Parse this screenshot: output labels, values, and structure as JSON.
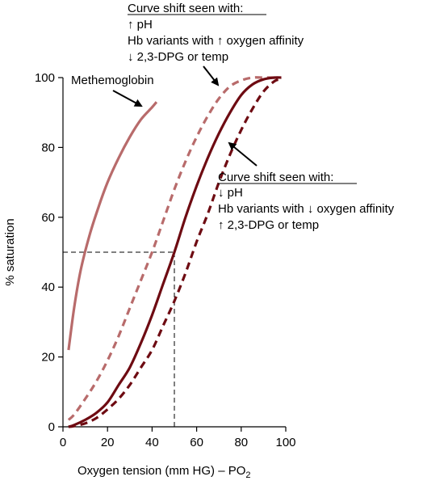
{
  "chart_data": {
    "type": "line",
    "title": "",
    "xlabel": "Oxygen tension (mm HG) – PO",
    "xlabel_subscript": "2",
    "ylabel": "% saturation",
    "xlim": [
      0,
      100
    ],
    "ylim": [
      0,
      100
    ],
    "xticks": [
      "0",
      "20",
      "40",
      "60",
      "80",
      "100"
    ],
    "yticks": [
      "0",
      "20",
      "40",
      "60",
      "80",
      "100"
    ],
    "grid": false,
    "reference_lines": {
      "x": 50,
      "y": 50
    },
    "series": [
      {
        "key": "methemoglobin",
        "color": "#b86b6b",
        "style": "solid",
        "x": [
          2.5,
          5,
          8,
          12,
          16,
          20,
          25,
          30,
          35,
          40,
          42
        ],
        "y": [
          22,
          34,
          45,
          55,
          63,
          70,
          77,
          83,
          88,
          91.5,
          93
        ]
      },
      {
        "key": "left-shift",
        "color": "#b86b6b",
        "style": "dashed",
        "x": [
          2.5,
          5,
          10,
          15,
          20,
          25,
          30,
          35,
          40,
          45,
          50,
          55,
          60,
          65,
          70,
          75,
          80,
          85,
          90,
          95
        ],
        "y": [
          2,
          3.5,
          8,
          13,
          19,
          26,
          34,
          42,
          50,
          59,
          68,
          76,
          83,
          89,
          94,
          97.5,
          99.2,
          100,
          100,
          100
        ]
      },
      {
        "key": "normal",
        "color": "#6e0b12",
        "style": "solid",
        "x": [
          2.5,
          5,
          10,
          15,
          20,
          25,
          30,
          35,
          40,
          45,
          50,
          55,
          60,
          65,
          70,
          75,
          80,
          85,
          90,
          95,
          98
        ],
        "y": [
          0,
          0.5,
          2,
          4,
          7,
          12,
          17,
          24,
          32,
          41,
          50,
          60,
          69,
          77,
          84,
          90,
          95,
          98,
          99.5,
          100,
          100
        ]
      },
      {
        "key": "right-shift",
        "color": "#6e0b12",
        "style": "dashed",
        "x": [
          2.5,
          5,
          10,
          15,
          20,
          25,
          30,
          35,
          40,
          45,
          50,
          55,
          60,
          65,
          70,
          75,
          80,
          85,
          90,
          95,
          98
        ],
        "y": [
          0,
          0.2,
          1,
          2.5,
          5,
          8,
          12,
          17,
          22,
          29,
          36,
          44,
          53,
          61,
          70,
          78,
          85,
          91,
          96,
          99,
          99.5
        ]
      }
    ],
    "annotations": {
      "methemoglobin": "Methemoglobin",
      "left": {
        "heading": "Curve shift seen with:",
        "lines": [
          "↑ pH",
          "Hb variants with ↑ oxygen affinity",
          "↓ 2,3-DPG or temp"
        ]
      },
      "right": {
        "heading": "Curve shift seen with:",
        "lines": [
          "↓ pH",
          "Hb variants with ↓ oxygen affinity",
          "↑ 2,3-DPG or temp"
        ]
      }
    }
  }
}
